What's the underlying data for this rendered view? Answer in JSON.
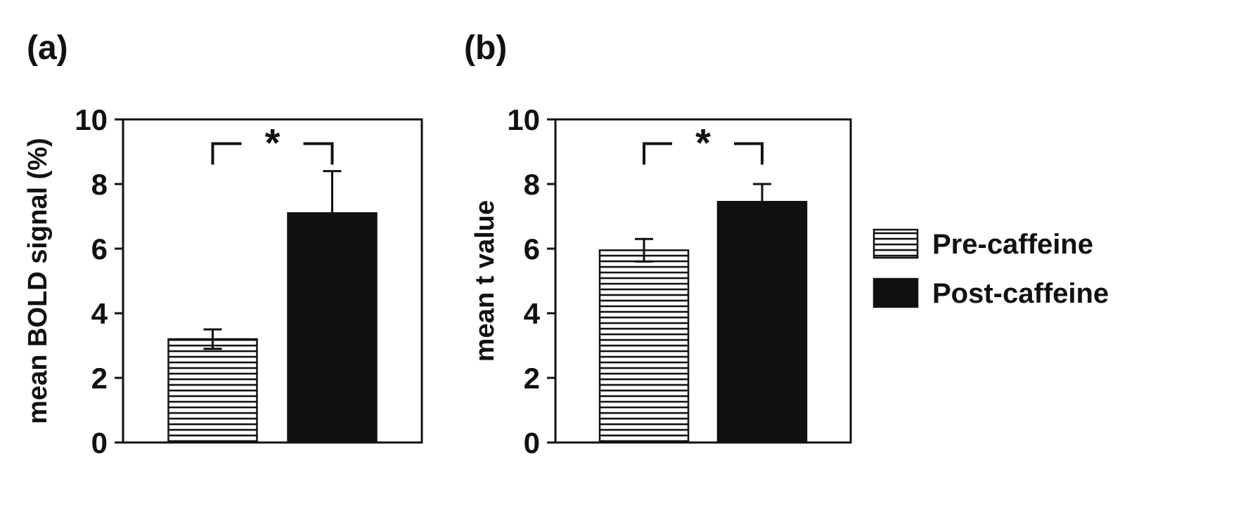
{
  "figure": {
    "background": "#ffffff",
    "ink": "#111111"
  },
  "chart_data": [
    {
      "type": "bar",
      "panel": "(a)",
      "ylabel": "mean BOLD signal (%)",
      "xlabel": "",
      "ylim": [
        0,
        10
      ],
      "yticks": [
        0,
        2,
        4,
        6,
        8,
        10
      ],
      "categories": [
        "Pre-caffeine",
        "Post-caffeine"
      ],
      "values": [
        3.2,
        7.1
      ],
      "errors": [
        0.3,
        1.3
      ],
      "styles": [
        "hatched",
        "solid"
      ],
      "significance": "*",
      "grid": "off",
      "legend_position": "outside-right"
    },
    {
      "type": "bar",
      "panel": "(b)",
      "ylabel": "mean t value",
      "xlabel": "",
      "ylim": [
        0,
        10
      ],
      "yticks": [
        0,
        2,
        4,
        6,
        8,
        10
      ],
      "categories": [
        "Pre-caffeine",
        "Post-caffeine"
      ],
      "values": [
        5.95,
        7.45
      ],
      "errors": [
        0.35,
        0.55
      ],
      "styles": [
        "hatched",
        "solid"
      ],
      "significance": "*",
      "grid": "off",
      "legend_position": "outside-right"
    }
  ],
  "legend": {
    "items": [
      {
        "label": "Pre-caffeine",
        "style": "hatched"
      },
      {
        "label": "Post-caffeine",
        "style": "solid"
      }
    ]
  }
}
